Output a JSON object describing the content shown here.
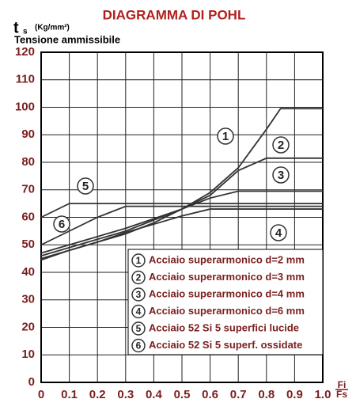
{
  "chart_data": {
    "type": "line",
    "title": "DIAGRAMMA DI POHL",
    "y_symbol": "t",
    "y_symbol_sub": "s",
    "y_unit": "(Kg/mm²)",
    "y_label": "Tensione ammissibile",
    "x_label_num": "Fi",
    "x_label_den": "Fs",
    "x": [
      0,
      0.1,
      0.2,
      0.3,
      0.4,
      0.5,
      0.6,
      0.7,
      0.8,
      0.85,
      0.9,
      1.0
    ],
    "series": [
      {
        "label": "1",
        "name": "Acciaio superarmonico d=2 mm",
        "color": "#333333",
        "values": [
          45,
          48,
          51,
          54,
          58,
          63,
          69,
          78,
          92,
          99.5,
          99.5,
          99.5
        ]
      },
      {
        "label": "2",
        "name": "Acciaio superarmonico d=3 mm",
        "color": "#333333",
        "values": [
          46,
          49,
          52,
          55,
          59,
          63,
          68,
          77,
          81.5,
          81.5,
          81.5,
          81.5
        ]
      },
      {
        "label": "3",
        "name": "Acciaio superarmonico d=4 mm",
        "color": "#333333",
        "values": [
          47,
          50,
          53,
          56,
          59.5,
          63,
          67,
          69.5,
          69.5,
          69.5,
          69.5,
          69.5
        ]
      },
      {
        "label": "4",
        "name": "Acciaio superarmonico d=6 mm",
        "color": "#333333",
        "values": [
          44.5,
          48,
          51,
          54.5,
          57.5,
          60.5,
          63,
          63,
          63,
          63,
          63,
          63
        ]
      },
      {
        "label": "5",
        "name": "Acciaio 52 Si 5 superfici lucide",
        "color": "#333333",
        "values": [
          60,
          65,
          65,
          65,
          65,
          65,
          65,
          65,
          65,
          65,
          65,
          65
        ]
      },
      {
        "label": "6",
        "name": "Acciaio 52 Si 5 superf. ossidate",
        "color": "#333333",
        "values": [
          50,
          55,
          60,
          64,
          64,
          64,
          64,
          64,
          64,
          64,
          64,
          64
        ]
      }
    ],
    "xlim": [
      0,
      1
    ],
    "ylim": [
      0,
      120
    ],
    "xticks": [
      0,
      0.1,
      0.2,
      0.3,
      0.4,
      0.5,
      0.6,
      0.7,
      0.8,
      0.9,
      {
        "value": 1,
        "label": "1.0"
      }
    ],
    "yticks": [
      0,
      10,
      20,
      30,
      40,
      50,
      60,
      70,
      80,
      90,
      100,
      110,
      120
    ],
    "grid": true
  }
}
